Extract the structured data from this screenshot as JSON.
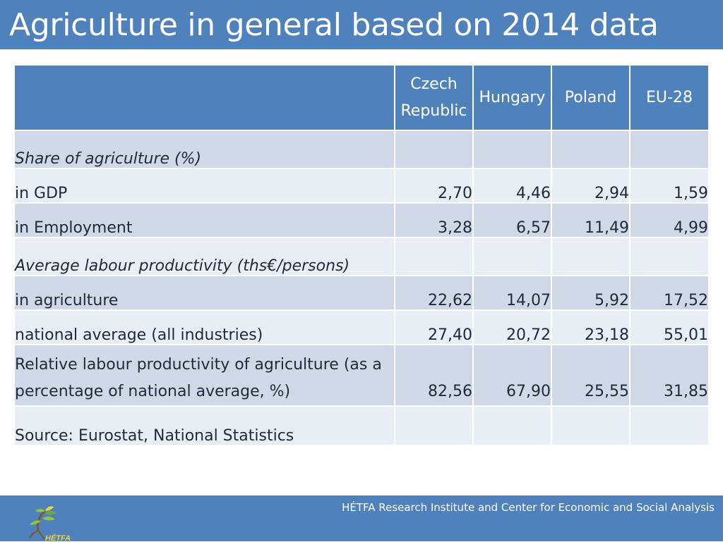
{
  "title": "Agriculture in general based on 2014 data",
  "table": {
    "columns": [
      "Czech Republic",
      "Hungary",
      "Poland",
      "EU-28"
    ],
    "rows": [
      {
        "label": "Share of agriculture (%)",
        "italic": true,
        "values": [
          "",
          "",
          "",
          ""
        ]
      },
      {
        "label": "in GDP",
        "values": [
          "2,70",
          "4,46",
          "2,94",
          "1,59"
        ]
      },
      {
        "label": "in Employment",
        "values": [
          "3,28",
          "6,57",
          "11,49",
          "4,99"
        ]
      },
      {
        "label": "Average labour productivity (ths€/persons)",
        "italic": true,
        "values": [
          "",
          "",
          "",
          ""
        ]
      },
      {
        "label": "in agriculture",
        "values": [
          "22,62",
          "14,07",
          "5,92",
          "17,52"
        ]
      },
      {
        "label": "national average (all industries)",
        "values": [
          "27,40",
          "20,72",
          "23,18",
          "55,01"
        ]
      },
      {
        "label": "Relative labour productivity of agriculture (as a percentage of national average, %)",
        "values": [
          "82,56",
          "67,90",
          "25,55",
          "31,85"
        ]
      },
      {
        "label": "Source: Eurostat, National Statistics",
        "values": [
          "",
          "",
          "",
          ""
        ]
      }
    ]
  },
  "footer": {
    "text": "HÉTFA Research Institute and Center for Economic and Social Analysis",
    "logo_text": "HÉTFA"
  },
  "colors": {
    "header_blue": "#4f81bd",
    "row_dark": "#d0d8e8",
    "row_light": "#e9edf4",
    "logo_green": "#8cc63f",
    "logo_yellow": "#e8d53a"
  }
}
